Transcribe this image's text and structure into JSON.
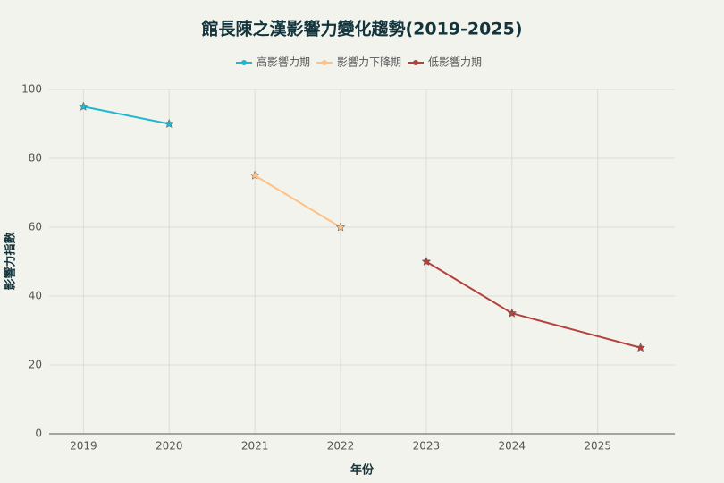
{
  "chart_data": {
    "type": "line",
    "title": "館長陳之漢影響力變化趨勢(2019-2025)",
    "x_label": "年份",
    "y_label": "影響力指數",
    "series": [
      {
        "name": "高影響力期",
        "color": "#1fb8cd",
        "x": [
          2019,
          2020
        ],
        "values": [
          95,
          90
        ]
      },
      {
        "name": "影響力下降期",
        "color": "#ffc185",
        "x": [
          2021,
          2022
        ],
        "values": [
          75,
          60
        ]
      },
      {
        "name": "低影響力期",
        "color": "#b4413c",
        "x": [
          2023,
          2024,
          2025.5
        ],
        "values": [
          50,
          35,
          25
        ]
      }
    ],
    "xlim": [
      2018.6,
      2025.9
    ],
    "xticks": [
      2019,
      2020,
      2021,
      2022,
      2023,
      2024,
      2025
    ],
    "ylim": [
      0,
      100
    ],
    "yticks": [
      0,
      20,
      40,
      60,
      80,
      100
    ],
    "grid": true
  }
}
